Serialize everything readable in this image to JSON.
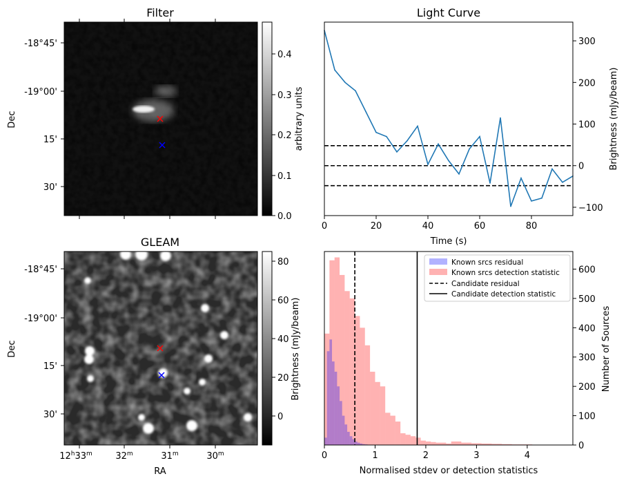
{
  "panels": {
    "filter": {
      "title": "Filter",
      "ylabel": "Dec",
      "dec_ticks": [
        "-18°45'",
        "-19°00'",
        "15'",
        "30'"
      ],
      "colorbar": {
        "label": "arbitrary units",
        "ticks": [
          "0.4",
          "0.3",
          "0.2",
          "0.1",
          "0.0"
        ],
        "range": [
          0,
          0.47
        ]
      },
      "markers": [
        {
          "name": "candidate",
          "symbol": "x",
          "color": "#ff0000"
        },
        {
          "name": "known",
          "symbol": "x",
          "color": "#0000ff"
        }
      ]
    },
    "gleam": {
      "title": "GLEAM",
      "ylabel": "Dec",
      "xlabel": "RA",
      "dec_ticks": [
        "-18°45'",
        "-19°00'",
        "15'",
        "30'"
      ],
      "ra_ticks": [
        {
          "h": "12",
          "sup_h": "h",
          "m": "33",
          "sup_m": "m"
        },
        {
          "h": "",
          "sup_h": "",
          "m": "32",
          "sup_m": "m"
        },
        {
          "h": "",
          "sup_h": "",
          "m": "31",
          "sup_m": "m"
        },
        {
          "h": "",
          "sup_h": "",
          "m": "30",
          "sup_m": "m"
        }
      ],
      "colorbar": {
        "label": "Brightness (mJy/beam)",
        "ticks": [
          "80",
          "60",
          "40",
          "20",
          "0"
        ],
        "range": [
          -15,
          85
        ]
      }
    }
  },
  "chart_data": [
    {
      "type": "line",
      "title": "Light Curve",
      "xlabel": "Time (s)",
      "ylabel": "Brightness (mJy/beam)",
      "xlim": [
        0,
        96
      ],
      "ylim": [
        -120,
        345
      ],
      "xticks": [
        0,
        20,
        40,
        60,
        80
      ],
      "yticks": [
        -100,
        0,
        100,
        200,
        300
      ],
      "series": [
        {
          "color": "#1f77b4",
          "x": [
            0,
            4,
            8,
            12,
            16,
            20,
            24,
            28,
            32,
            36,
            40,
            44,
            48,
            52,
            56,
            60,
            64,
            68,
            72,
            76,
            80,
            84,
            88,
            92,
            96
          ],
          "y": [
            325,
            230,
            200,
            180,
            130,
            80,
            70,
            33,
            60,
            95,
            3,
            52,
            12,
            -20,
            40,
            70,
            -42,
            115,
            -98,
            -30,
            -85,
            -78,
            -8,
            -40,
            -25
          ]
        }
      ],
      "hlines": [
        {
          "y": 48,
          "style": "dashed"
        },
        {
          "y": 0,
          "style": "dashed"
        },
        {
          "y": -48,
          "style": "dashed"
        }
      ]
    },
    {
      "type": "bar",
      "subtype": "histogram",
      "xlabel": "Normalised stdev or detection statistics",
      "ylabel": "Number of Sources",
      "xlim": [
        0,
        4.9
      ],
      "ylim": [
        0,
        660
      ],
      "xticks": [
        0,
        1,
        2,
        3,
        4
      ],
      "yticks": [
        0,
        100,
        200,
        300,
        400,
        500,
        600
      ],
      "series": [
        {
          "name": "Known srcs residual",
          "color": "#0000ff",
          "alpha": 0.3,
          "bin_start": 0.0,
          "bin_width": 0.05,
          "values": [
            25,
            320,
            360,
            285,
            250,
            200,
            150,
            100,
            70,
            45,
            30,
            20,
            12,
            8,
            5,
            3,
            2,
            1,
            1
          ]
        },
        {
          "name": "Known srcs detection statistic",
          "color": "#ff0000",
          "alpha": 0.3,
          "bin_start": 0.0,
          "bin_width": 0.1,
          "values": [
            380,
            630,
            640,
            580,
            525,
            500,
            440,
            400,
            340,
            250,
            215,
            200,
            110,
            100,
            80,
            40,
            35,
            30,
            25,
            15,
            12,
            10,
            8,
            8,
            5,
            12,
            12,
            8,
            8,
            6,
            6,
            5,
            5,
            4,
            4,
            3,
            3,
            2,
            2,
            2,
            2,
            1,
            1,
            1,
            1,
            1,
            0,
            0
          ]
        }
      ],
      "vlines": [
        {
          "name": "Candidate residual",
          "x": 0.6,
          "style": "dashed"
        },
        {
          "name": "Candidate detection statistic",
          "x": 1.83,
          "style": "solid"
        }
      ]
    }
  ]
}
